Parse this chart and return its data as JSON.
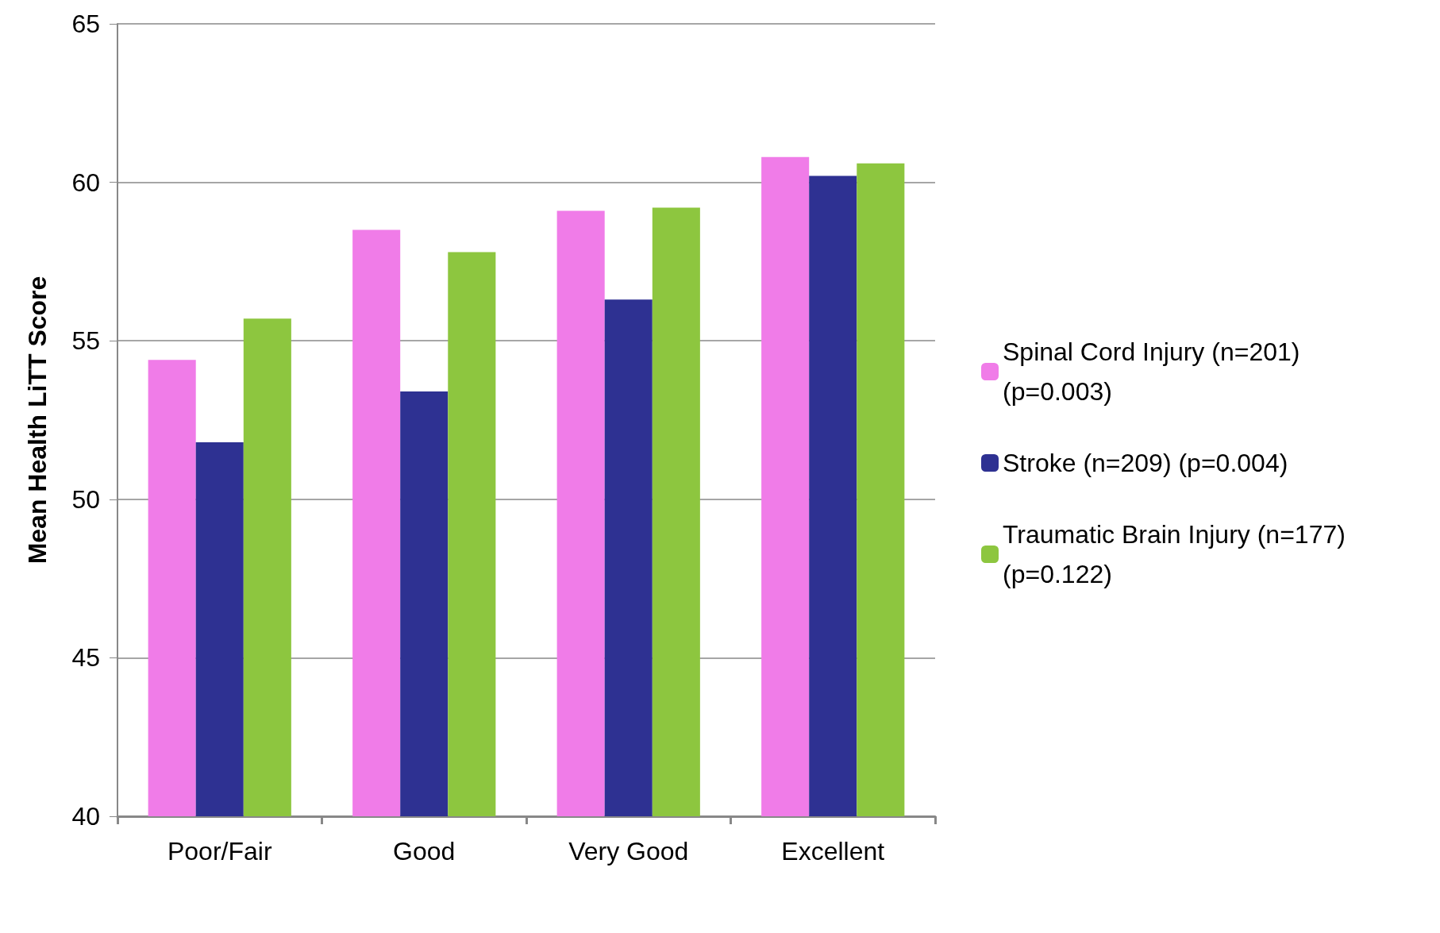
{
  "chart_data": {
    "type": "bar",
    "ylabel": "Mean Health LiTT Score",
    "categories": [
      "Poor/Fair",
      "Good",
      "Very Good",
      "Excellent"
    ],
    "series": [
      {
        "name": "Spinal Cord Injury (n=201) (p=0.003)",
        "color": "#f07ce8",
        "values": [
          54.4,
          58.5,
          59.1,
          60.8
        ]
      },
      {
        "name": "Stroke (n=209) (p=0.004)",
        "color": "#2e3192",
        "values": [
          51.8,
          53.4,
          56.3,
          60.2
        ]
      },
      {
        "name": "Traumatic Brain Injury (n=177) (p=0.122)",
        "color": "#8dc63f",
        "values": [
          55.7,
          57.8,
          59.2,
          60.6
        ]
      }
    ],
    "ylim": [
      40,
      65
    ],
    "yticks": [
      40,
      45,
      50,
      55,
      60,
      65
    ],
    "grid": "y",
    "legend": "right"
  }
}
